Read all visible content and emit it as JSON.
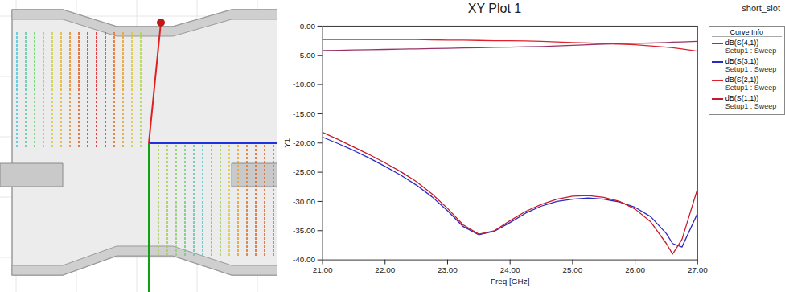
{
  "chart_data": {
    "type": "line",
    "title": "XY Plot 1",
    "subtitle": "short_slot",
    "x_label": "Freq [GHz]",
    "y_label": "Y1",
    "legend_title": "Curve Info",
    "legend": "right",
    "grid": false,
    "x": [
      21,
      21.25,
      21.5,
      21.75,
      22,
      22.25,
      22.5,
      22.75,
      23,
      23.25,
      23.5,
      23.75,
      24,
      24.25,
      24.5,
      24.75,
      25,
      25.25,
      25.5,
      25.75,
      26,
      26.25,
      26.5,
      26.6,
      26.75,
      27
    ],
    "xlim": [
      21,
      27
    ],
    "xticks": [
      {
        "value": 21,
        "label": "21.00"
      },
      {
        "value": 22,
        "label": "22.00"
      },
      {
        "value": 23,
        "label": "23.00"
      },
      {
        "value": 24,
        "label": "24.00"
      },
      {
        "value": 25,
        "label": "25.00"
      },
      {
        "value": 26,
        "label": "26.00"
      },
      {
        "value": 27,
        "label": "27.00"
      }
    ],
    "ylim": [
      -40,
      0
    ],
    "yticks": [
      {
        "value": 0,
        "label": "0.00"
      },
      {
        "value": -5,
        "label": "-5.00"
      },
      {
        "value": -10,
        "label": "-10.00"
      },
      {
        "value": -15,
        "label": "-15.00"
      },
      {
        "value": -20,
        "label": "-20.00"
      },
      {
        "value": -25,
        "label": "-25.00"
      },
      {
        "value": -30,
        "label": "-30.00"
      },
      {
        "value": -35,
        "label": "-35.00"
      },
      {
        "value": -40,
        "label": "-40.00"
      }
    ],
    "series": [
      {
        "name": "dB(S(4,1))",
        "setup": "Setup1 : Sweep",
        "color": "#993366",
        "values": [
          -4.2,
          -4.15,
          -4.1,
          -4.05,
          -4.0,
          -3.95,
          -3.9,
          -3.85,
          -3.8,
          -3.75,
          -3.7,
          -3.65,
          -3.6,
          -3.55,
          -3.5,
          -3.4,
          -3.3,
          -3.2,
          -3.1,
          -3.0,
          -2.95,
          -2.9,
          -2.8,
          -2.75,
          -2.7,
          -2.6
        ]
      },
      {
        "name": "dB(S(3,1))",
        "setup": "Setup1 : Sweep",
        "color": "#2b2bc0",
        "values": [
          -19.0,
          -20.1,
          -21.3,
          -22.6,
          -24.0,
          -25.5,
          -27.2,
          -29.2,
          -31.6,
          -34.3,
          -35.7,
          -35.1,
          -33.6,
          -32.0,
          -30.8,
          -30.0,
          -29.6,
          -29.4,
          -29.6,
          -30.1,
          -31.0,
          -32.6,
          -35.5,
          -37.2,
          -37.8,
          -32.0
        ]
      },
      {
        "name": "dB(S(2,1))",
        "setup": "Setup1 : Sweep",
        "color": "#e0202a",
        "values": [
          -2.3,
          -2.3,
          -2.3,
          -2.3,
          -2.3,
          -2.3,
          -2.3,
          -2.35,
          -2.4,
          -2.4,
          -2.45,
          -2.5,
          -2.5,
          -2.55,
          -2.6,
          -2.7,
          -2.8,
          -2.9,
          -3.0,
          -3.1,
          -3.2,
          -3.4,
          -3.6,
          -3.7,
          -3.9,
          -4.3
        ]
      },
      {
        "name": "dB(S(1,1))",
        "setup": "Setup1 : Sweep",
        "color": "#c41c2c",
        "values": [
          -18.2,
          -19.4,
          -20.7,
          -22.0,
          -23.4,
          -24.9,
          -26.6,
          -28.7,
          -31.2,
          -34.0,
          -35.6,
          -35.0,
          -33.3,
          -31.7,
          -30.5,
          -29.6,
          -29.1,
          -29.0,
          -29.3,
          -30.0,
          -31.3,
          -33.5,
          -37.2,
          -39.0,
          -36.5,
          -27.8
        ]
      }
    ]
  }
}
